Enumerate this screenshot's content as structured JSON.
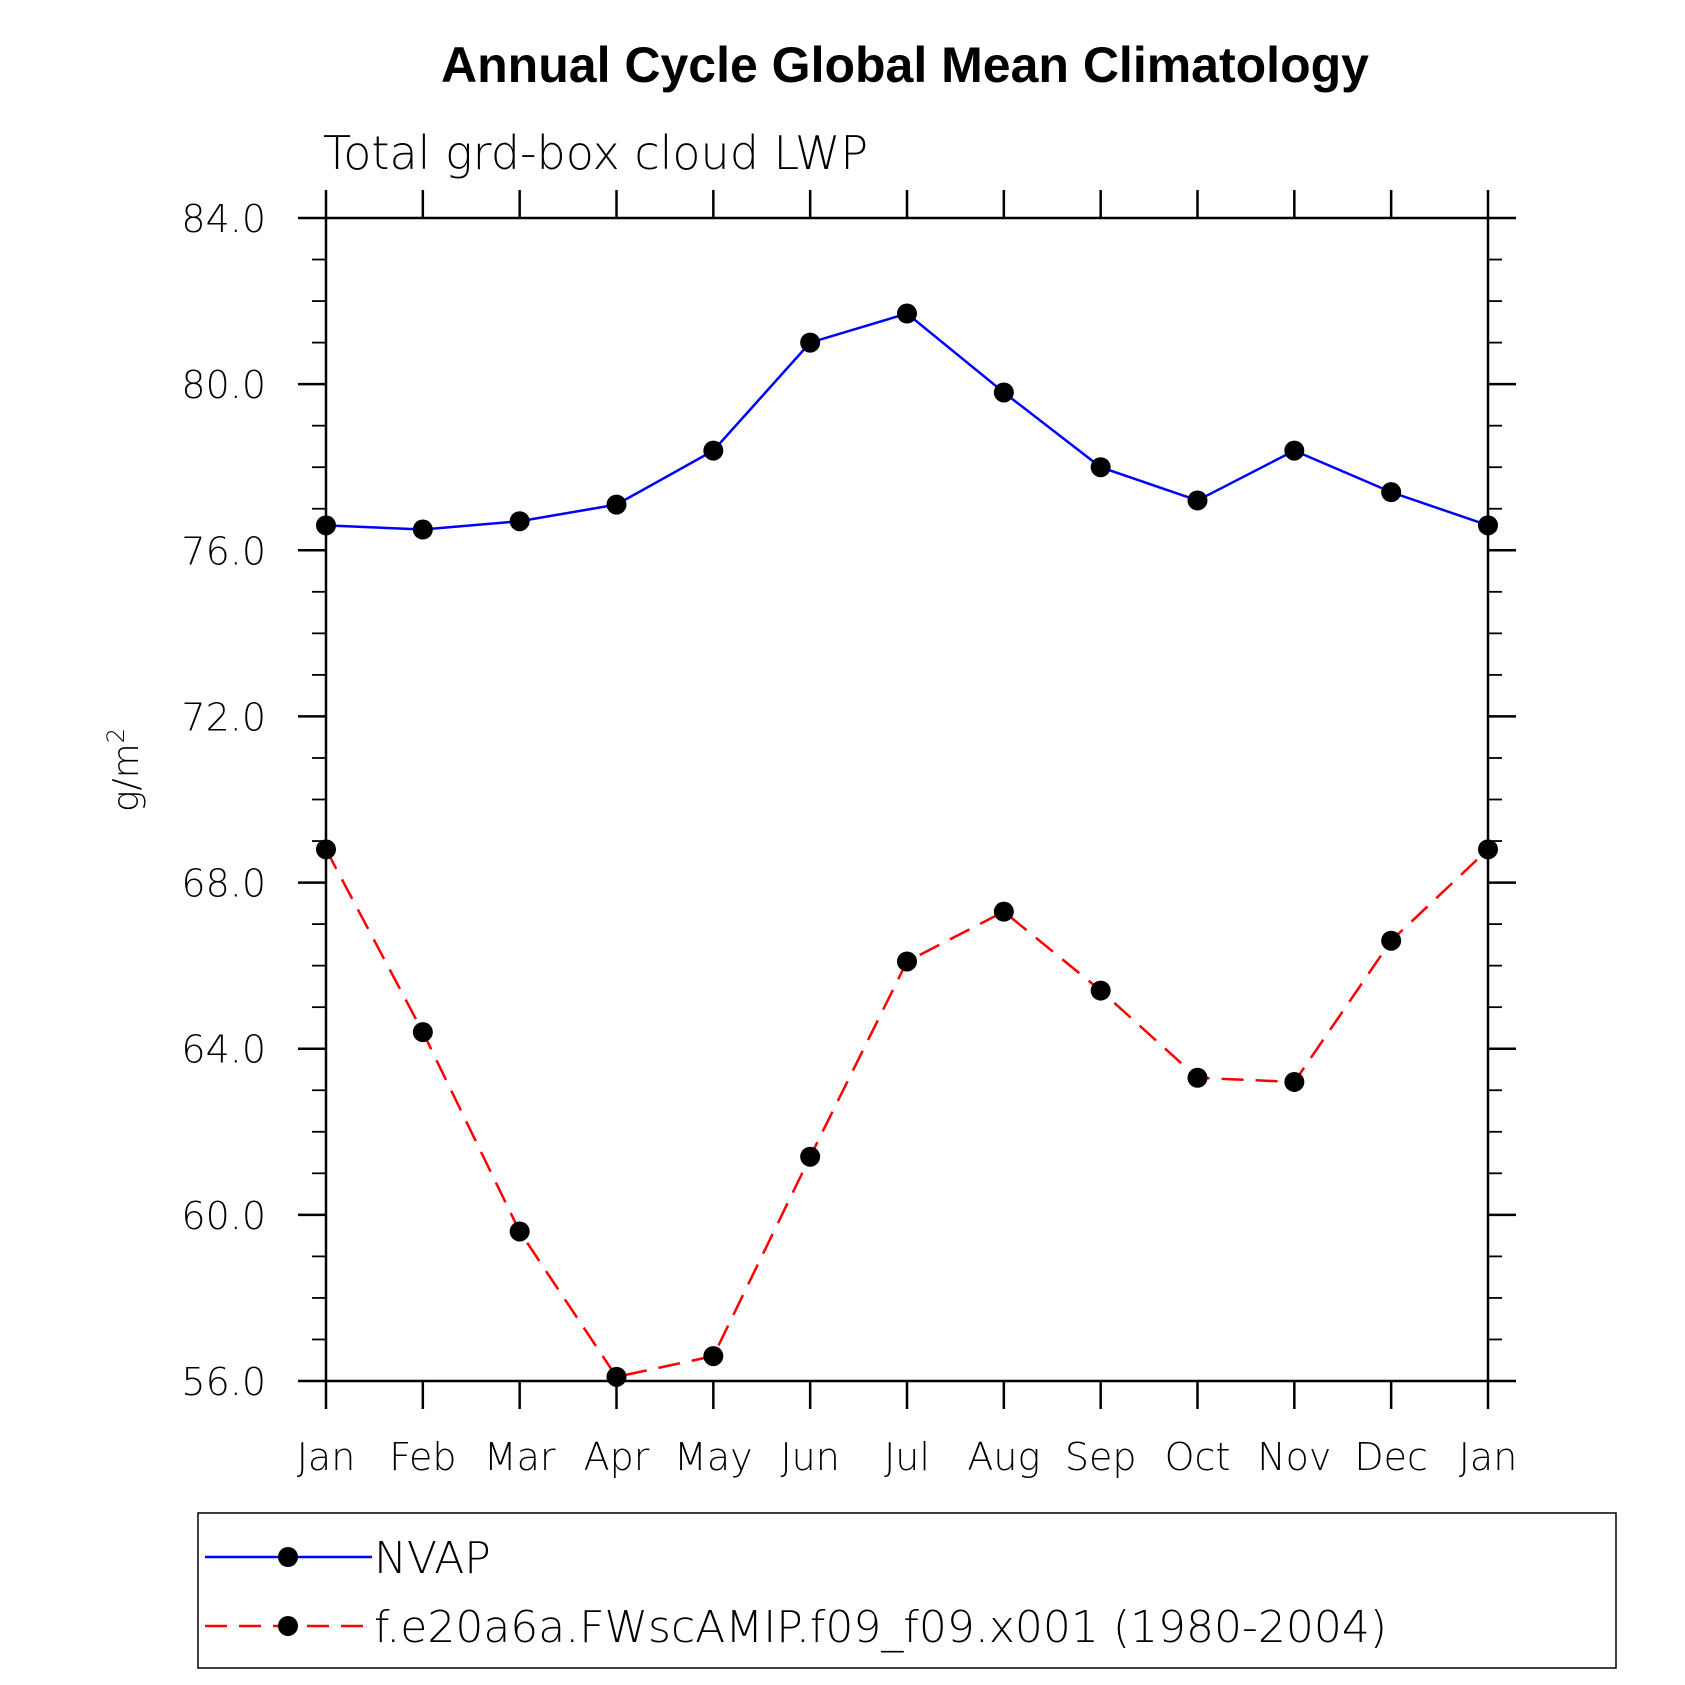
{
  "chart_data": {
    "type": "line",
    "title": "Annual Cycle Global Mean Climatology",
    "subtitle": "Total grd-box cloud LWP",
    "ylabel_base": "g/m",
    "ylabel_sup": "2",
    "xlabel": "",
    "categories": [
      "Jan",
      "Feb",
      "Mar",
      "Apr",
      "May",
      "Jun",
      "Jul",
      "Aug",
      "Sep",
      "Oct",
      "Nov",
      "Dec",
      "Jan"
    ],
    "ylim": [
      56.0,
      84.0
    ],
    "y_ticks": [
      "56.0",
      "60.0",
      "64.0",
      "68.0",
      "72.0",
      "76.0",
      "80.0",
      "84.0"
    ],
    "grid": false,
    "legend_position": "bottom",
    "series": [
      {
        "name": "NVAP",
        "color": "#0000ff",
        "dash": "solid",
        "marker": "filled-circle",
        "values": [
          76.6,
          76.5,
          76.7,
          77.1,
          78.4,
          81.0,
          81.7,
          79.8,
          78.0,
          77.2,
          78.4,
          77.4,
          76.6
        ]
      },
      {
        "name": "f.e20a6a.FWscAMIP.f09_f09.x001 (1980-2004)",
        "color": "#ff0000",
        "dash": "dashed",
        "marker": "filled-circle",
        "values": [
          68.8,
          64.4,
          59.6,
          56.1,
          56.6,
          61.4,
          66.1,
          67.3,
          65.4,
          63.3,
          63.2,
          66.6,
          68.8
        ]
      }
    ]
  }
}
